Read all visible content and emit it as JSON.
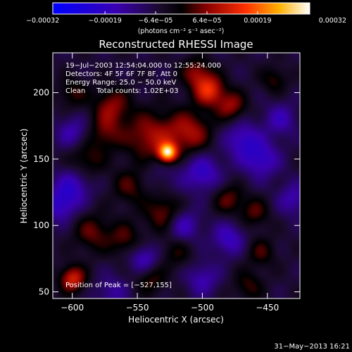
{
  "chart_data": {
    "type": "heatmap",
    "title": "Reconstructed RHESSI Image",
    "xlabel": "Heliocentric X (arcsec)",
    "ylabel": "Heliocentric Y (arcsec)",
    "x_range": [
      -615,
      -425
    ],
    "y_range": [
      45,
      230
    ],
    "x_ticks": [
      -600,
      -550,
      -500,
      -450
    ],
    "y_ticks": [
      50,
      100,
      150,
      200
    ],
    "x_tick_labels": [
      "−600",
      "−550",
      "−500",
      "−450"
    ],
    "y_tick_labels": [
      "50",
      "100",
      "150",
      "200"
    ],
    "colorbar": {
      "range": [
        -0.00032,
        0.00032
      ],
      "ticks": [
        -0.00032,
        -0.00019,
        -6.4e-05,
        6.4e-05,
        0.00019,
        0.00032
      ],
      "tick_labels": [
        "−0.00032",
        "−0.00019",
        "−6.4e−05",
        "6.4e−05",
        "0.00019",
        "0.00032"
      ],
      "unit_label": "(photons cm⁻² s⁻¹ asec⁻²)"
    },
    "annotations": [
      "19−Jul−2003 12:54:04.000 to 12:55:24.000",
      "Detectors: 4F 5F 6F 7F 8F, Att 0",
      "Energy Range: 25.0 − 50.0 keV",
      "Clean     Total counts: 1.02E+03"
    ],
    "peak_text": "Position of Peak = [−527,155]",
    "peak": {
      "x": -527,
      "y": 155,
      "value": 0.00032
    },
    "sources": [
      {
        "x": -527,
        "y": 155,
        "sigma": 5,
        "amp": 0.00032
      },
      {
        "x": -540,
        "y": 165,
        "sigma": 14,
        "amp": 0.00016
      },
      {
        "x": -510,
        "y": 170,
        "sigma": 12,
        "amp": 0.00014
      },
      {
        "x": -495,
        "y": 202,
        "sigma": 8,
        "amp": 0.00019
      },
      {
        "x": -478,
        "y": 190,
        "sigma": 8,
        "amp": 0.00013
      },
      {
        "x": -505,
        "y": 215,
        "sigma": 8,
        "amp": 0.00012
      },
      {
        "x": -570,
        "y": 190,
        "sigma": 10,
        "amp": 0.00012
      },
      {
        "x": -575,
        "y": 170,
        "sigma": 9,
        "amp": 9e-05
      },
      {
        "x": -590,
        "y": 150,
        "sigma": 10,
        "amp": 9e-05
      },
      {
        "x": -555,
        "y": 130,
        "sigma": 10,
        "amp": 0.0001
      },
      {
        "x": -530,
        "y": 110,
        "sigma": 10,
        "amp": 0.00012
      },
      {
        "x": -585,
        "y": 95,
        "sigma": 10,
        "amp": 0.0001
      },
      {
        "x": -560,
        "y": 90,
        "sigma": 9,
        "amp": 9e-05
      },
      {
        "x": -600,
        "y": 60,
        "sigma": 7,
        "amp": 0.00018
      },
      {
        "x": -540,
        "y": 60,
        "sigma": 8,
        "amp": 9e-05
      },
      {
        "x": -480,
        "y": 120,
        "sigma": 8,
        "amp": 0.0001
      },
      {
        "x": -460,
        "y": 110,
        "sigma": 8,
        "amp": 9e-05
      },
      {
        "x": -455,
        "y": 80,
        "sigma": 8,
        "amp": 8e-05
      },
      {
        "x": -445,
        "y": 210,
        "sigma": 7,
        "amp": 8e-05
      },
      {
        "x": -465,
        "y": 55,
        "sigma": 8,
        "amp": 8e-05
      },
      {
        "x": -520,
        "y": 80,
        "sigma": 9,
        "amp": 7e-05
      },
      {
        "x": -600,
        "y": 200,
        "sigma": 8,
        "amp": 8e-05
      },
      {
        "x": -535,
        "y": 145,
        "sigma": 16,
        "amp": -6e-05
      },
      {
        "x": -470,
        "y": 165,
        "sigma": 10,
        "amp": -0.00012
      },
      {
        "x": -455,
        "y": 150,
        "sigma": 10,
        "amp": -0.00013
      },
      {
        "x": -600,
        "y": 130,
        "sigma": 10,
        "amp": -0.00012
      },
      {
        "x": -500,
        "y": 140,
        "sigma": 10,
        "amp": -0.00013
      },
      {
        "x": -515,
        "y": 100,
        "sigma": 9,
        "amp": -0.00012
      },
      {
        "x": -545,
        "y": 75,
        "sigma": 8,
        "amp": -0.00012
      },
      {
        "x": -610,
        "y": 115,
        "sigma": 9,
        "amp": -0.00012
      },
      {
        "x": -480,
        "y": 90,
        "sigma": 9,
        "amp": -0.00012
      },
      {
        "x": -600,
        "y": 170,
        "sigma": 9,
        "amp": -0.0001
      },
      {
        "x": -440,
        "y": 180,
        "sigma": 9,
        "amp": -0.0001
      },
      {
        "x": -430,
        "y": 120,
        "sigma": 9,
        "amp": -0.0001
      },
      {
        "x": -500,
        "y": 60,
        "sigma": 9,
        "amp": -0.0001
      },
      {
        "x": -570,
        "y": 50,
        "sigma": 9,
        "amp": -8e-05
      }
    ]
  },
  "footer": {
    "timestamp": "31−May−2013 16:21"
  }
}
